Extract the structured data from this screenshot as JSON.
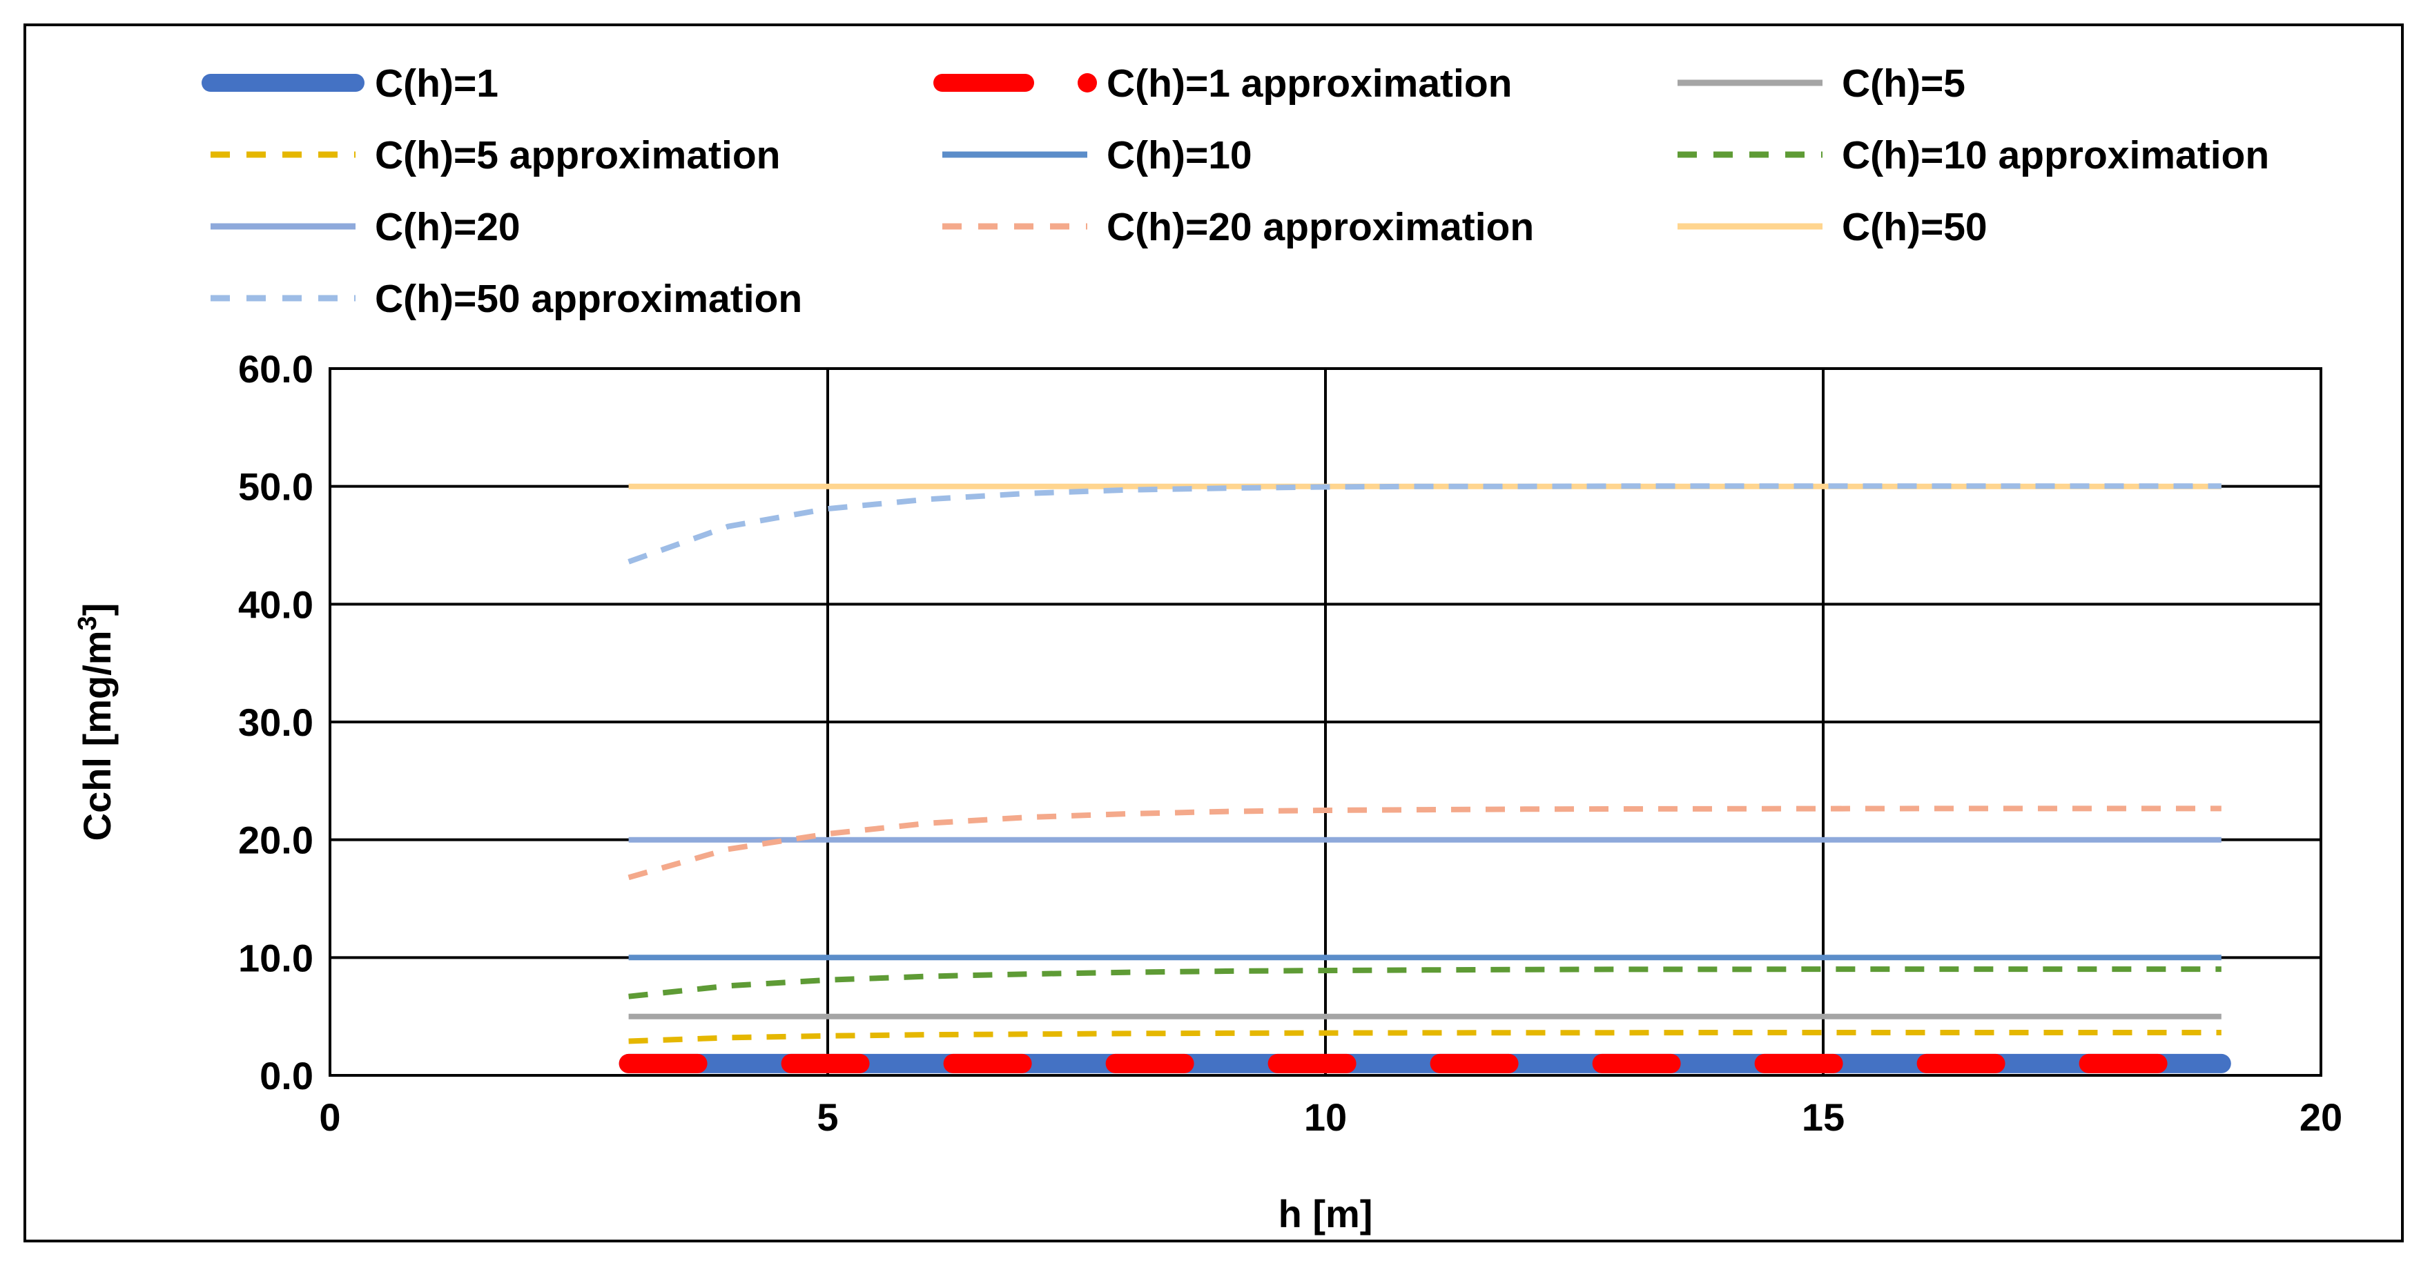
{
  "chart_data": {
    "type": "line",
    "title": "",
    "xlabel": "h [m]",
    "ylabel_main": "Cchl [mg/m",
    "ylabel_sup": "3",
    "ylabel_end": "]",
    "xlim": [
      0,
      20
    ],
    "ylim": [
      0,
      60
    ],
    "x_ticks": [
      0,
      5,
      10,
      15,
      20
    ],
    "y_ticks": [
      "0.0",
      "10.0",
      "20.0",
      "30.0",
      "40.0",
      "50.0",
      "60.0"
    ],
    "grid": true,
    "legend_position": "top",
    "x": [
      3,
      4,
      5,
      6,
      7,
      8,
      9,
      10,
      11,
      12,
      13,
      14,
      15,
      16,
      17,
      18,
      19
    ],
    "series": [
      {
        "name": "C(h)=1",
        "color": "#4472C4",
        "style": "solid-thick",
        "values": [
          1,
          1,
          1,
          1,
          1,
          1,
          1,
          1,
          1,
          1,
          1,
          1,
          1,
          1,
          1,
          1,
          1
        ]
      },
      {
        "name": "C(h)=1 approximation",
        "color": "#FF0000",
        "style": "dash-thick",
        "values": [
          1,
          1,
          1,
          1,
          1,
          1,
          1,
          1,
          1,
          1,
          1,
          1,
          1,
          1,
          1,
          1,
          1
        ]
      },
      {
        "name": "C(h)=5",
        "color": "#A5A5A5",
        "style": "solid",
        "values": [
          5,
          5,
          5,
          5,
          5,
          5,
          5,
          5,
          5,
          5,
          5,
          5,
          5,
          5,
          5,
          5,
          5
        ]
      },
      {
        "name": "C(h)=5 approximation",
        "color": "#E5B700",
        "style": "dash",
        "values": [
          2.9,
          3.2,
          3.35,
          3.45,
          3.5,
          3.55,
          3.58,
          3.6,
          3.61,
          3.62,
          3.62,
          3.63,
          3.63,
          3.63,
          3.63,
          3.63,
          3.63
        ]
      },
      {
        "name": "C(h)=10",
        "color": "#5B8DC9",
        "style": "solid",
        "values": [
          10,
          10,
          10,
          10,
          10,
          10,
          10,
          10,
          10,
          10,
          10,
          10,
          10,
          10,
          10,
          10,
          10
        ]
      },
      {
        "name": "C(h)=10 approximation",
        "color": "#5E9B35",
        "style": "dash",
        "values": [
          6.7,
          7.6,
          8.1,
          8.4,
          8.6,
          8.75,
          8.85,
          8.9,
          8.95,
          8.98,
          9.0,
          9.0,
          9.02,
          9.02,
          9.02,
          9.02,
          9.02
        ]
      },
      {
        "name": "C(h)=20",
        "color": "#8EA9DB",
        "style": "solid",
        "values": [
          20,
          20,
          20,
          20,
          20,
          20,
          20,
          20,
          20,
          20,
          20,
          20,
          20,
          20,
          20,
          20,
          20
        ]
      },
      {
        "name": "C(h)=20 approximation",
        "color": "#F4A98B",
        "style": "dash",
        "values": [
          16.8,
          19.2,
          20.5,
          21.4,
          21.9,
          22.2,
          22.4,
          22.5,
          22.55,
          22.6,
          22.62,
          22.63,
          22.64,
          22.65,
          22.65,
          22.65,
          22.65
        ]
      },
      {
        "name": "C(h)=50",
        "color": "#FFD58F",
        "style": "solid",
        "values": [
          50,
          50,
          50,
          50,
          50,
          50,
          50,
          50,
          50,
          50,
          50,
          50,
          50,
          50,
          50,
          50,
          50
        ]
      },
      {
        "name": "C(h)=50 approximation",
        "color": "#9DBCE6",
        "style": "dash",
        "values": [
          43.6,
          46.6,
          48.1,
          48.9,
          49.4,
          49.7,
          49.85,
          49.95,
          50.0,
          50.0,
          50.02,
          50.03,
          50.03,
          50.03,
          50.03,
          50.03,
          50.03
        ]
      }
    ]
  }
}
